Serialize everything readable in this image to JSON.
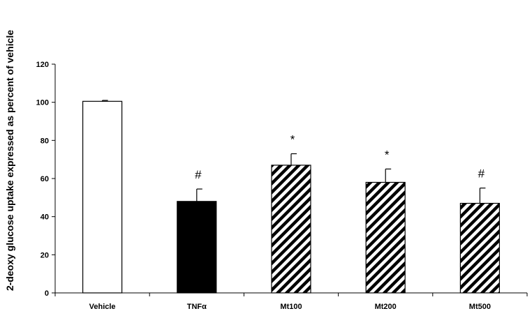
{
  "chart_data": {
    "type": "bar",
    "title": "",
    "xlabel": "",
    "ylabel": "2-deoxy glucose uptake expressed as percent of vehicle",
    "ylim": [
      0,
      120
    ],
    "yticks": [
      0,
      20,
      40,
      60,
      80,
      100,
      120
    ],
    "grid": false,
    "categories": [
      "Vehicle",
      "TNFα",
      "Mt100",
      "Mt200",
      "Mt500"
    ],
    "values": [
      100.5,
      48,
      67,
      58,
      47
    ],
    "errors": [
      0.5,
      6.5,
      6,
      7,
      8
    ],
    "annotations": [
      "",
      "#",
      "*",
      "*",
      "#"
    ],
    "fills": [
      "white",
      "black",
      "hatched",
      "hatched",
      "hatched"
    ]
  }
}
